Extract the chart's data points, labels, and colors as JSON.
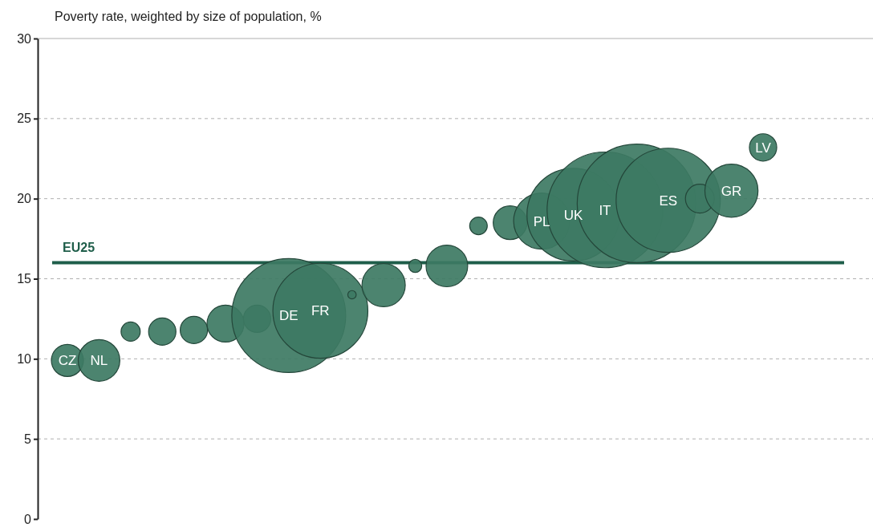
{
  "chart_data": {
    "type": "bubble",
    "ylabel": "Poverty rate, weighted by size of population, %",
    "categories": [
      "CZ",
      "NL",
      null,
      null,
      null,
      null,
      null,
      "DE",
      "FR",
      null,
      null,
      null,
      null,
      null,
      null,
      "PL",
      "UK",
      "IT",
      null,
      "ES",
      null,
      "GR",
      "LV"
    ],
    "values": [
      9.9,
      9.9,
      11.7,
      11.7,
      11.8,
      12.2,
      12.5,
      12.7,
      13.0,
      14.0,
      14.6,
      15.8,
      15.8,
      18.3,
      18.5,
      18.6,
      19.0,
      19.3,
      19.7,
      19.9,
      20.0,
      20.5,
      23.2
    ],
    "sizes": [
      0.073,
      0.123,
      0.026,
      0.053,
      0.053,
      0.097,
      0.053,
      0.92,
      0.64,
      0.005,
      0.133,
      0.012,
      0.123,
      0.022,
      0.081,
      0.224,
      0.61,
      0.95,
      1,
      0.77,
      0.059,
      0.2,
      0.053
    ],
    "color": "#3d7a63",
    "ylim": [
      0,
      30
    ],
    "yticks": [
      0,
      5,
      10,
      15,
      20,
      25,
      30
    ],
    "grid": "y",
    "tick_labels": "y",
    "ref_lines": [
      {
        "axis": "y",
        "value": 16.0,
        "label": "EU25",
        "color": "#1f5e4a"
      }
    ]
  }
}
